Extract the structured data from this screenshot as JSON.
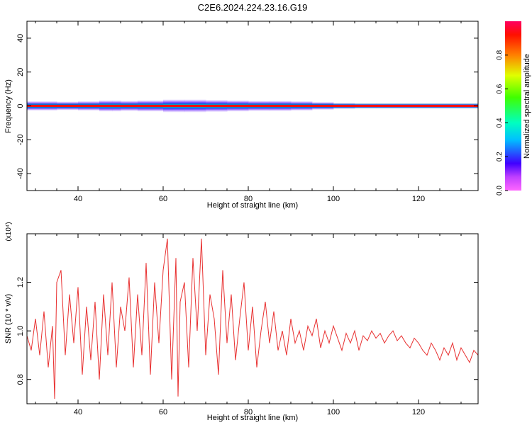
{
  "title": "C2E6.2024.224.23.16.G19",
  "colors": {
    "snr_line": "#e83030",
    "axis": "#000000",
    "band_edge": "#10a0a0"
  },
  "chart_data": [
    {
      "type": "heatmap",
      "xlabel": "Height of straight line (km)",
      "ylabel": "Frequency (Hz)",
      "xlim": [
        28,
        134
      ],
      "ylim": [
        -50,
        50
      ],
      "xticks": [
        {
          "v": 40,
          "label": "40"
        },
        {
          "v": 60,
          "label": "60"
        },
        {
          "v": 80,
          "label": "80"
        },
        {
          "v": 100,
          "label": "100"
        },
        {
          "v": 120,
          "label": "120"
        }
      ],
      "yticks": [
        {
          "v": -40,
          "label": "-40"
        },
        {
          "v": -20,
          "label": "-20"
        },
        {
          "v": 0,
          "label": "0"
        },
        {
          "v": 20,
          "label": "20"
        },
        {
          "v": 40,
          "label": "40"
        }
      ],
      "colorbar": {
        "label": "Normalized spectral amplitude",
        "range": [
          0,
          1
        ],
        "colormap": "rainbow",
        "ticks": [
          {
            "v": 0.0,
            "label": "0.0"
          },
          {
            "v": 0.2,
            "label": "0.2"
          },
          {
            "v": 0.4,
            "label": "0.4"
          },
          {
            "v": 0.6,
            "label": "0.6"
          },
          {
            "v": 0.8,
            "label": "0.8"
          }
        ]
      },
      "band": {
        "center_hz": 0,
        "x": [
          28,
          35,
          40,
          45,
          48,
          50,
          54,
          60,
          65,
          70,
          75,
          80,
          85,
          90,
          95,
          100,
          105,
          110,
          120,
          134
        ],
        "halfwidth_hz": [
          3,
          2.5,
          2.5,
          3,
          3.5,
          3,
          3,
          3.5,
          4,
          3.5,
          3.5,
          3,
          3,
          3,
          2.5,
          2,
          1.5,
          1.5,
          1.5,
          1.5
        ],
        "peak_amplitude": [
          1,
          0.9,
          0.95,
          0.95,
          1,
          0.9,
          0.85,
          0.8,
          0.8,
          0.85,
          0.8,
          0.8,
          0.85,
          0.7,
          0.75,
          0.8,
          0.9,
          0.95,
          1,
          1
        ]
      }
    },
    {
      "type": "line",
      "xlabel": "Height of straight line (km)",
      "ylabel": "SNR (10 * v/v)",
      "yscale_label": "(x10⁴)",
      "xlim": [
        28,
        134
      ],
      "ylim": [
        0.7,
        1.4
      ],
      "xticks": [
        {
          "v": 40,
          "label": "40"
        },
        {
          "v": 60,
          "label": "60"
        },
        {
          "v": 80,
          "label": "80"
        },
        {
          "v": 100,
          "label": "100"
        },
        {
          "v": 120,
          "label": "120"
        }
      ],
      "yticks": [
        {
          "v": 0.8,
          "label": "0.8"
        },
        {
          "v": 1.0,
          "label": "1.0"
        },
        {
          "v": 1.2,
          "label": "1.2"
        }
      ],
      "x": [
        28,
        29,
        30,
        31,
        32,
        33,
        34,
        34.5,
        35,
        36,
        37,
        38,
        39,
        40,
        41,
        42,
        43,
        44,
        45,
        46,
        47,
        48,
        49,
        50,
        51,
        52,
        53,
        54,
        55,
        56,
        57,
        58,
        59,
        60,
        61,
        62,
        63,
        63.5,
        64,
        65,
        66,
        67,
        68,
        69,
        70,
        71,
        72,
        73,
        74,
        75,
        76,
        77,
        78,
        79,
        80,
        81,
        82,
        83,
        84,
        85,
        86,
        87,
        88,
        89,
        90,
        91,
        92,
        93,
        94,
        95,
        96,
        97,
        98,
        99,
        100,
        101,
        102,
        103,
        104,
        105,
        106,
        107,
        108,
        109,
        110,
        111,
        112,
        113,
        114,
        115,
        116,
        117,
        118,
        119,
        120,
        121,
        122,
        123,
        124,
        125,
        126,
        127,
        128,
        129,
        130,
        131,
        132,
        133,
        134
      ],
      "y": [
        0.98,
        0.92,
        1.05,
        0.9,
        1.08,
        0.85,
        1.02,
        0.72,
        1.2,
        1.25,
        0.9,
        1.15,
        0.95,
        1.18,
        0.82,
        1.1,
        0.88,
        1.12,
        0.8,
        1.15,
        0.9,
        1.2,
        0.85,
        1.1,
        1.0,
        1.22,
        0.85,
        1.15,
        0.9,
        1.28,
        0.82,
        1.2,
        0.95,
        1.25,
        1.38,
        0.8,
        1.3,
        0.73,
        1.12,
        1.2,
        0.85,
        1.3,
        1.0,
        1.38,
        0.9,
        1.15,
        1.05,
        0.82,
        1.25,
        0.95,
        1.15,
        0.88,
        1.05,
        1.2,
        0.92,
        1.1,
        0.85,
        1.0,
        1.12,
        0.95,
        1.08,
        0.92,
        1.0,
        0.9,
        1.05,
        0.95,
        1.0,
        0.92,
        1.02,
        0.98,
        1.05,
        0.93,
        1.0,
        0.95,
        1.02,
        0.97,
        0.92,
        0.99,
        0.95,
        1.0,
        0.92,
        0.98,
        0.96,
        1.0,
        0.97,
        0.99,
        0.95,
        0.98,
        1.0,
        0.96,
        0.98,
        0.95,
        0.93,
        0.97,
        0.95,
        0.92,
        0.9,
        0.95,
        0.92,
        0.88,
        0.93,
        0.9,
        0.95,
        0.88,
        0.93,
        0.9,
        0.87,
        0.92,
        0.9
      ]
    }
  ]
}
